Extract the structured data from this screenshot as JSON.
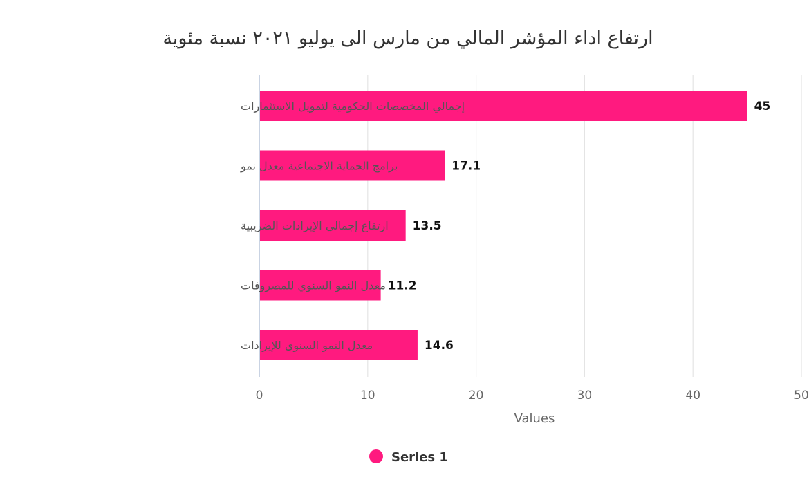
{
  "chart_data": {
    "type": "bar",
    "orientation": "horizontal",
    "title": "ارتفاع اداء المؤشر المالي من مارس الى يوليو ٢٠٢١ نسبة مئوية",
    "categories": [
      "إجمالي المخصصات الحكومية لتمويل الاستثمارات",
      "برامج الحماية الاجتماعية معدل نمو",
      "ارتفاع إجمالي الإيرادات الضريبية",
      "معدل النمو السنوي للمصروفات",
      "معدل النمو السنوى للإيرادات"
    ],
    "series": [
      {
        "name": "Series 1",
        "values": [
          45,
          17.1,
          13.5,
          11.2,
          14.6
        ],
        "color": "#ff1a7f"
      }
    ],
    "xlabel": "Values",
    "ylabel": "",
    "xlim": [
      0,
      50
    ],
    "xticks": [
      0,
      10,
      20,
      30,
      40,
      50
    ],
    "grid": true,
    "data_labels": [
      "45",
      "17.1",
      "13.5",
      "11.2",
      "14.6"
    ],
    "legend_position": "bottom"
  }
}
